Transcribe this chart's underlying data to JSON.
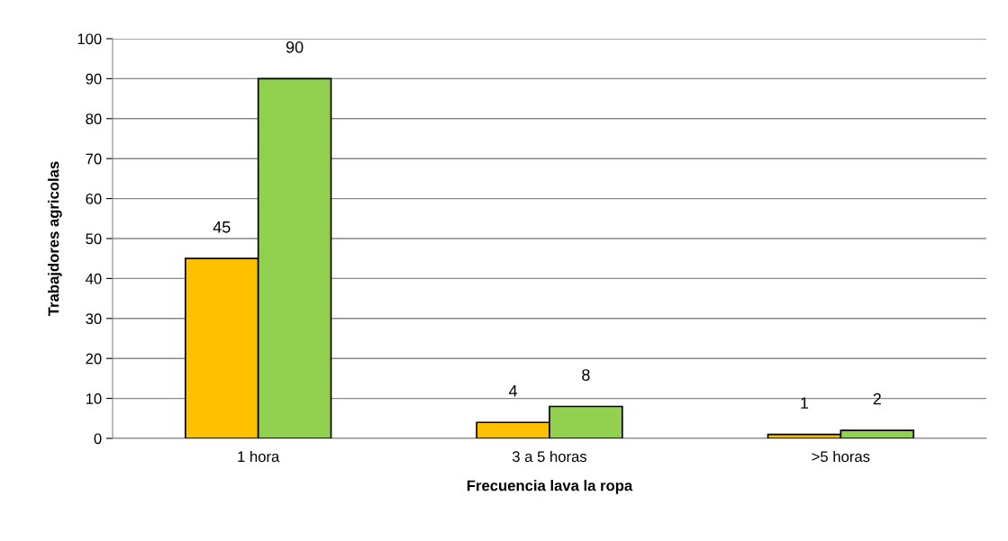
{
  "chart_data": {
    "type": "bar",
    "xlabel": "Frecuencia lava la ropa",
    "ylabel": "Trabajdores agricolas",
    "categories": [
      "1 hora",
      "3 a 5 horas",
      ">5 horas"
    ],
    "series": [
      {
        "color": "#ffc000",
        "values": [
          45,
          4,
          1
        ]
      },
      {
        "color": "#92d050",
        "values": [
          90,
          8,
          2
        ]
      }
    ],
    "ylim": [
      0,
      100
    ],
    "yticks": [
      0,
      10,
      20,
      30,
      40,
      50,
      60,
      70,
      80,
      90,
      100
    ],
    "grid": "y",
    "data_labels": true,
    "legend": false
  }
}
